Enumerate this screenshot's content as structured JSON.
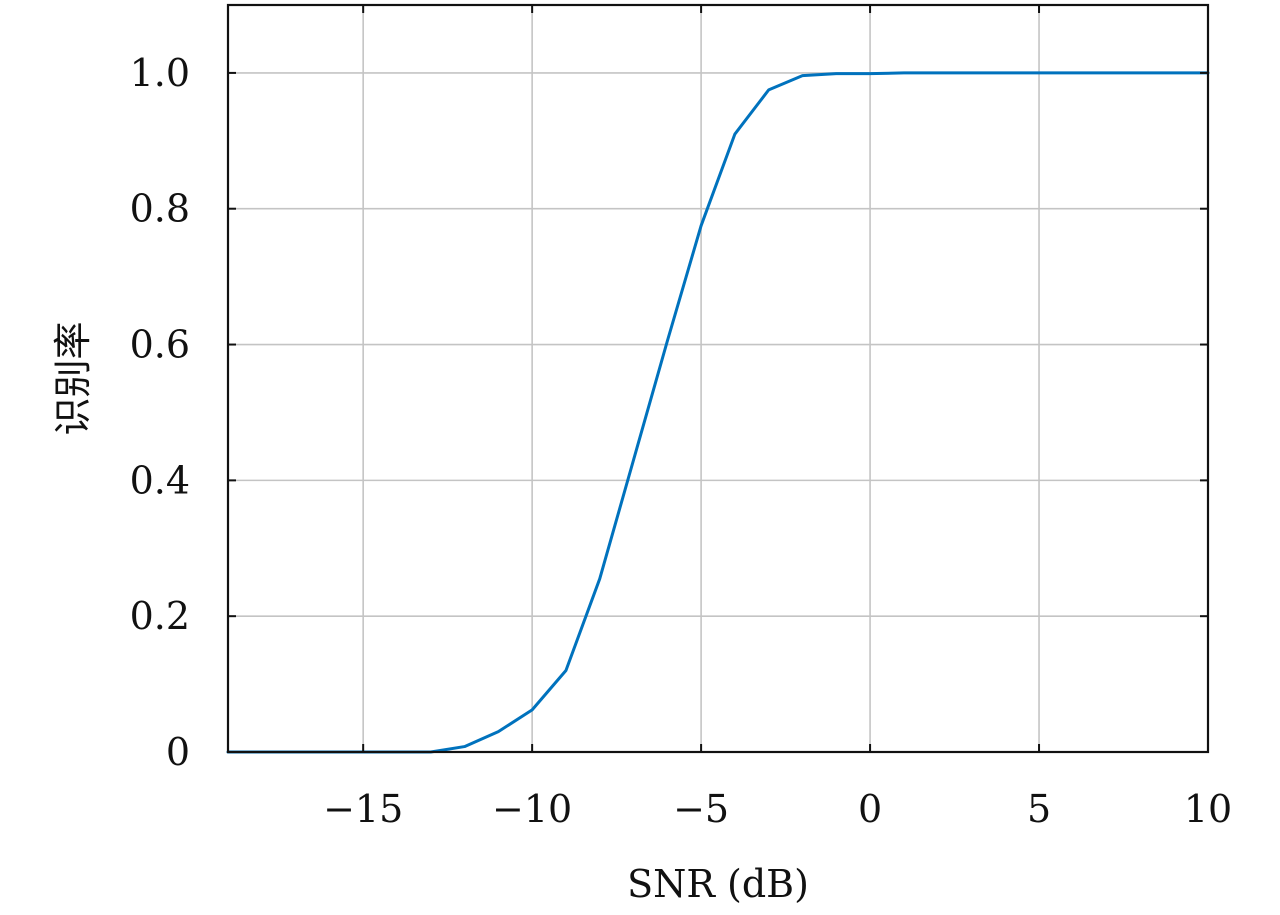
{
  "chart_data": {
    "type": "line",
    "title": "",
    "xlabel": "SNR (dB)",
    "ylabel": "识别率",
    "xlim": [
      -19,
      10
    ],
    "ylim": [
      0,
      1.1
    ],
    "grid": true,
    "legend": "none",
    "x_ticks": [
      -15,
      -10,
      -5,
      0,
      5,
      10
    ],
    "x_tick_labels": [
      "−15",
      "−10",
      "−5",
      "0",
      "5",
      "10"
    ],
    "y_ticks": [
      0,
      0.2,
      0.4,
      0.6,
      0.8,
      1.0
    ],
    "y_tick_labels": [
      "0",
      "0.2",
      "0.4",
      "0.6",
      "0.8",
      "1.0"
    ],
    "series": [
      {
        "color": "#0072BD",
        "x": [
          -19,
          -18,
          -17,
          -16,
          -15,
          -14,
          -13,
          -12,
          -11,
          -10,
          -9,
          -8,
          -7,
          -6,
          -5,
          -4,
          -3,
          -2,
          -1,
          0,
          1,
          2,
          3,
          4,
          5,
          6,
          7,
          8,
          9,
          10
        ],
        "y": [
          0,
          0,
          0,
          0,
          0,
          0,
          0,
          0.008,
          0.03,
          0.062,
          0.12,
          0.255,
          0.43,
          0.605,
          0.775,
          0.91,
          0.975,
          0.996,
          0.999,
          0.999,
          1.0,
          1.0,
          1.0,
          1.0,
          1.0,
          1.0,
          1.0,
          1.0,
          1.0,
          1.0
        ]
      }
    ]
  }
}
